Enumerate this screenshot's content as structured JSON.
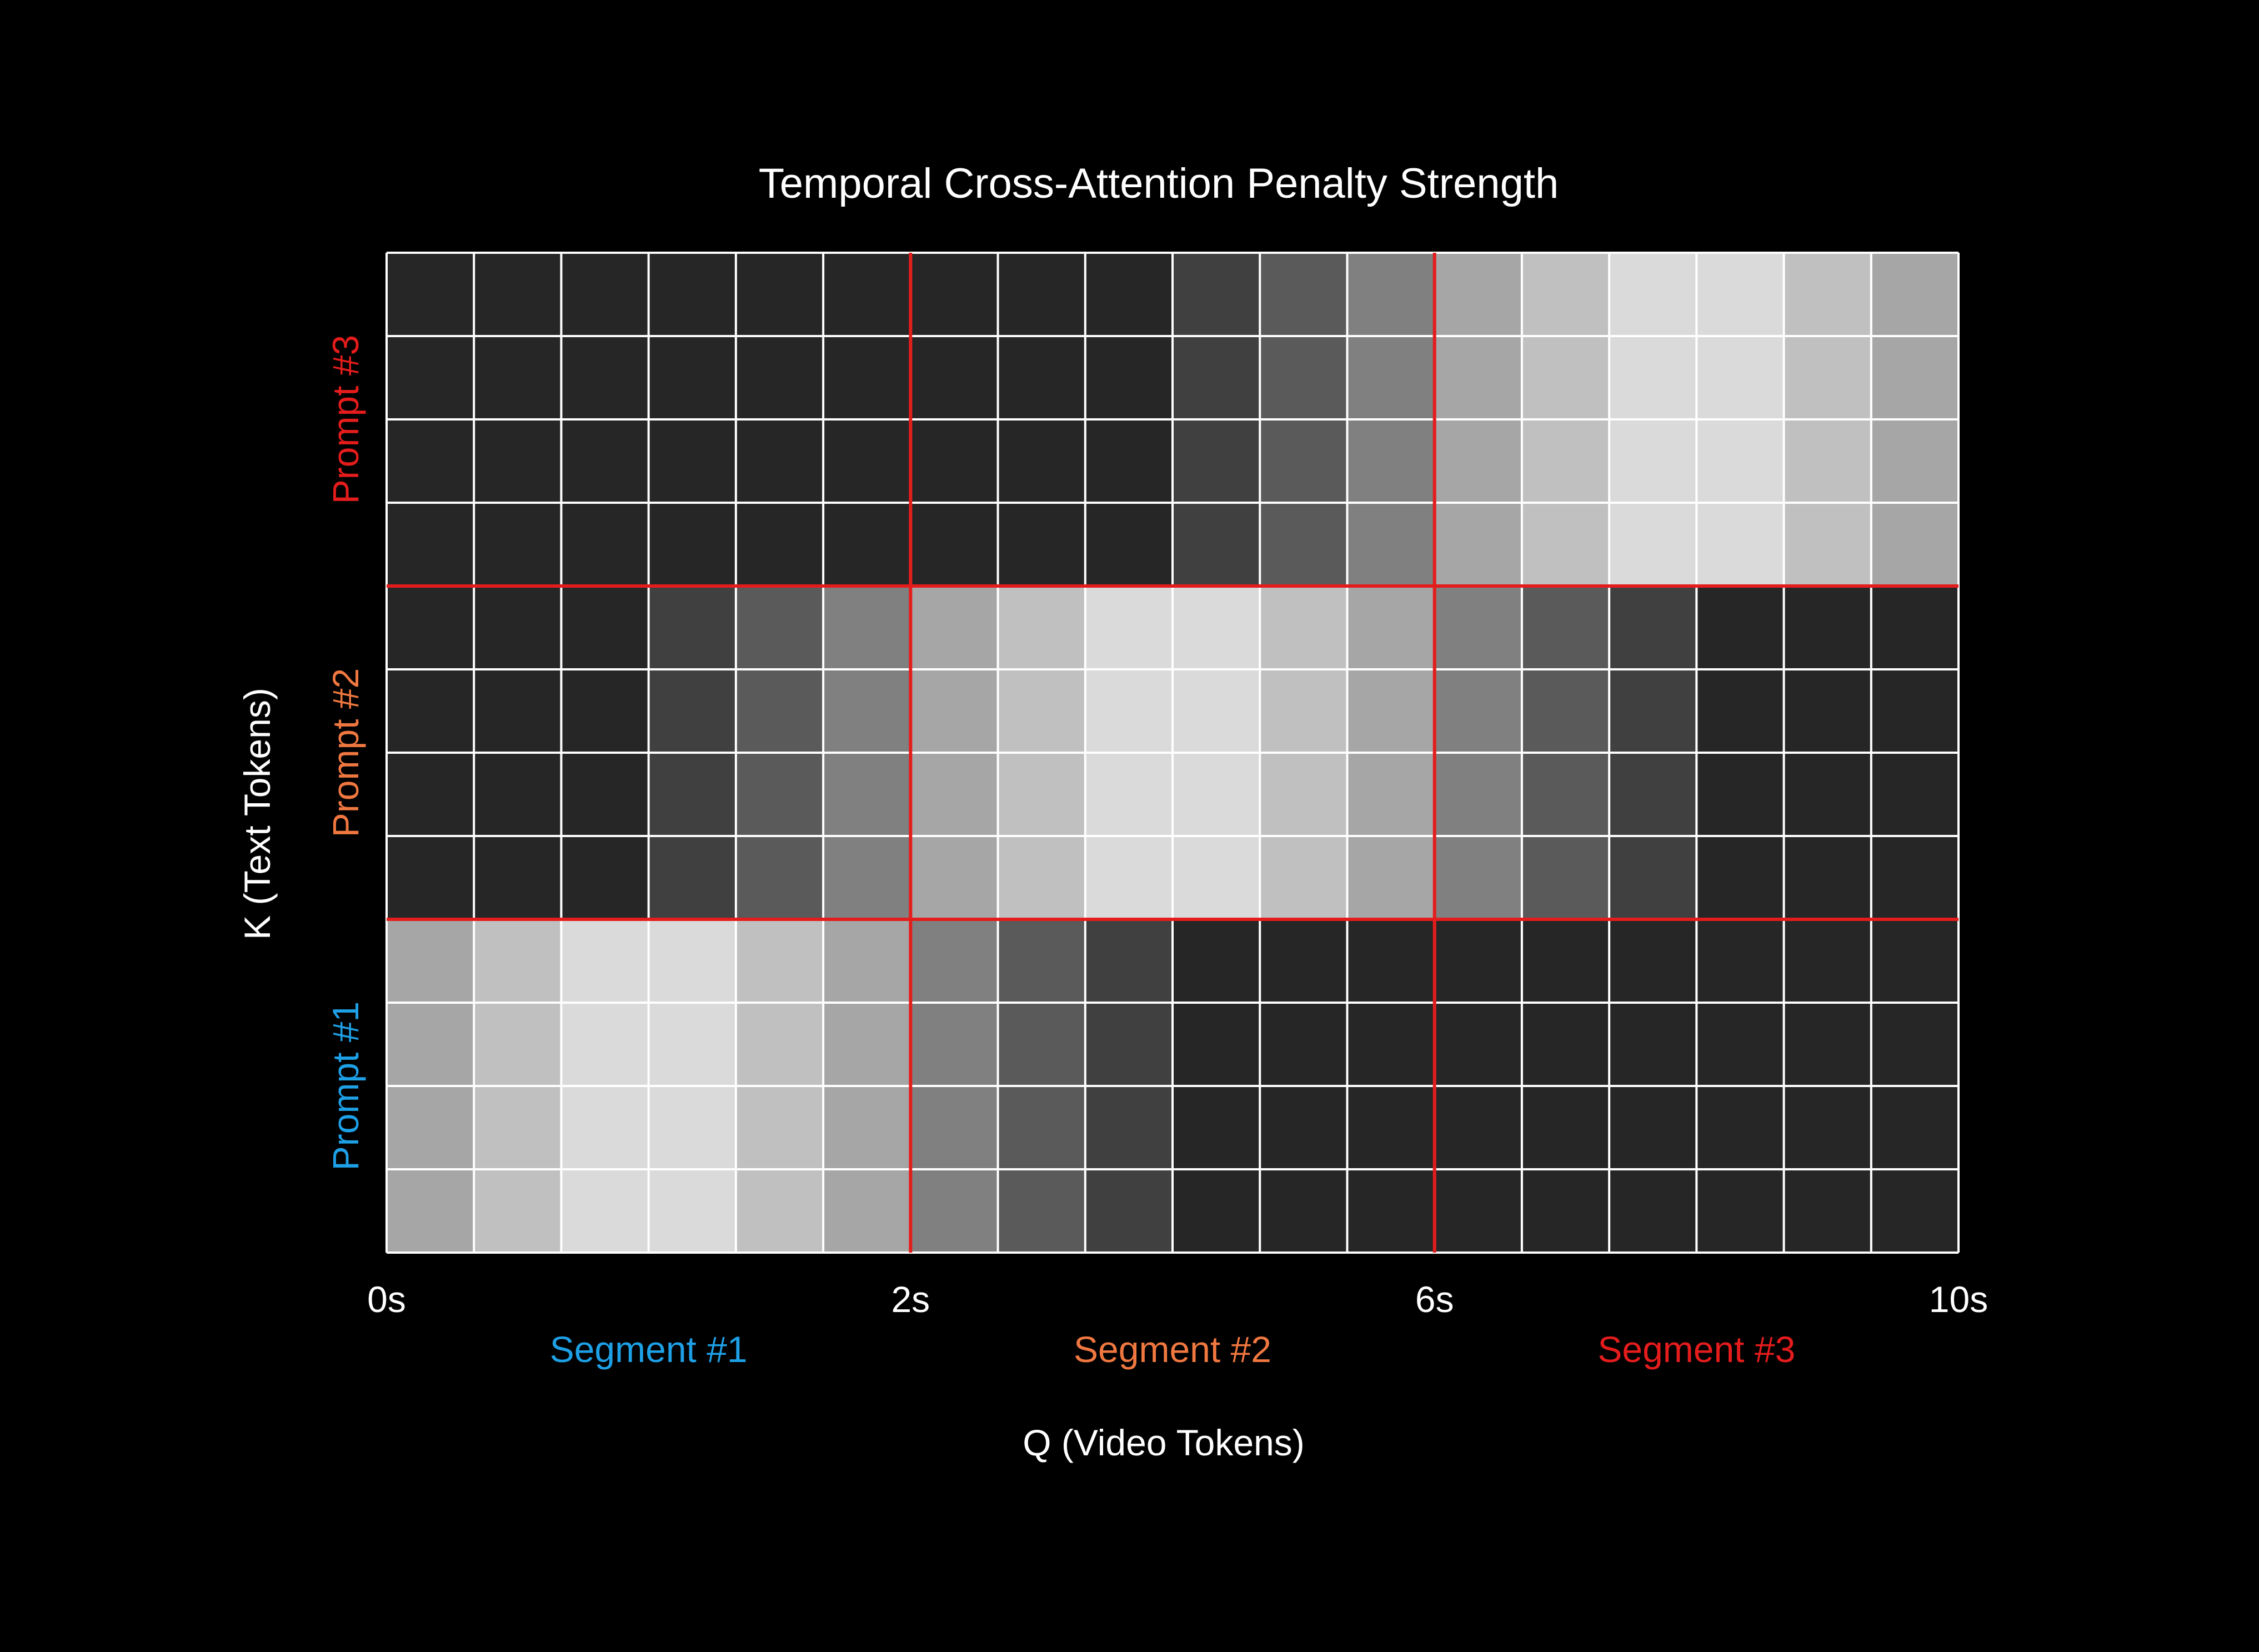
{
  "chart_data": {
    "type": "heatmap",
    "title": "Temporal Cross-Attention Penalty Strength",
    "xlabel": "Q (Video Tokens)",
    "ylabel": "K (Text Tokens)",
    "x_ticks": [
      "0s",
      "2s",
      "6s",
      "10s"
    ],
    "x_tick_columns": [
      0,
      6,
      12,
      18
    ],
    "segments": [
      {
        "label": "Segment #1",
        "color": "#1ea0e6"
      },
      {
        "label": "Segment #2",
        "color": "#f07840"
      },
      {
        "label": "Segment #3",
        "color": "#e51c1c"
      }
    ],
    "prompts": [
      {
        "label": "Prompt #3",
        "color": "#e51c1c"
      },
      {
        "label": "Prompt #2",
        "color": "#f07840"
      },
      {
        "label": "Prompt #1",
        "color": "#1ea0e6"
      }
    ],
    "n_cols": 18,
    "rows_per_prompt": 4,
    "row_gray_levels": [
      [
        38,
        38,
        38,
        38,
        38,
        38,
        38,
        38,
        38,
        64,
        90,
        128,
        166,
        192,
        218,
        218,
        192,
        166
      ],
      [
        38,
        38,
        38,
        64,
        90,
        128,
        166,
        192,
        218,
        218,
        192,
        166,
        128,
        90,
        64,
        38,
        38,
        38
      ],
      [
        166,
        192,
        218,
        218,
        192,
        166,
        128,
        90,
        64,
        38,
        38,
        38,
        38,
        38,
        38,
        38,
        38,
        38
      ]
    ],
    "grid_color": "#ffffff",
    "divider_color": "#e51c1c",
    "background": "#000000"
  }
}
